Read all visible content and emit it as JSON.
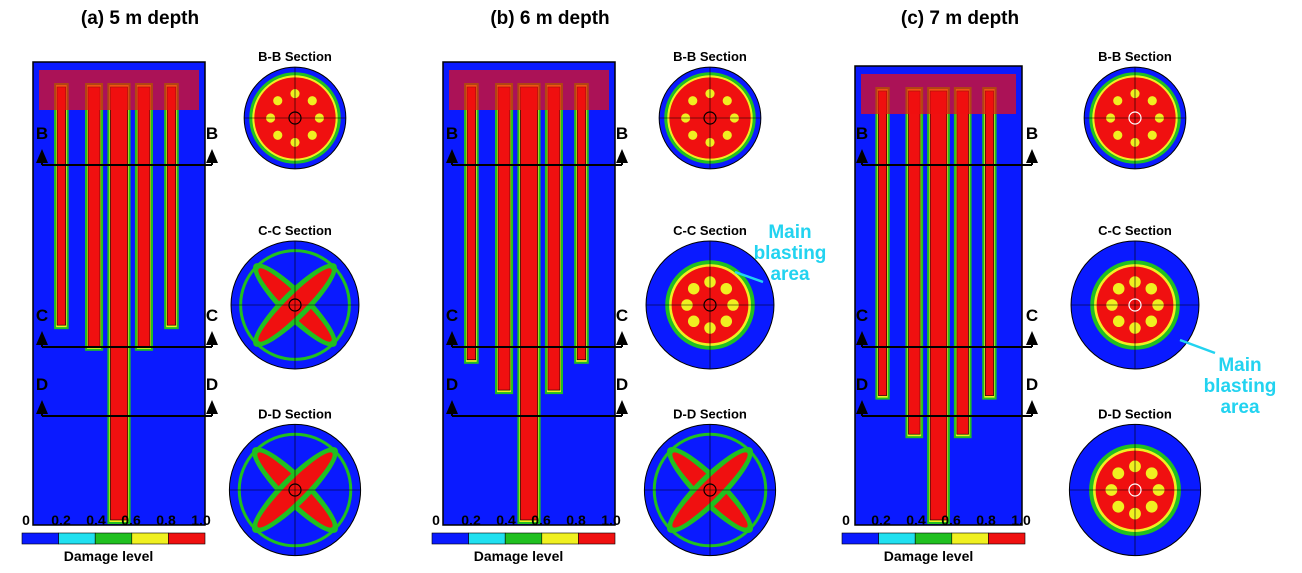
{
  "panels": [
    {
      "title": "(a) 5 m depth",
      "sections": [
        "B-B Section",
        "C-C Section",
        "D-D Section"
      ],
      "cut_labels": [
        "B",
        "C",
        "D"
      ],
      "colorbar": {
        "ticks": [
          "0",
          "0.2",
          "0.4",
          "0.6",
          "0.8",
          "1.0"
        ],
        "label": "Damage level"
      }
    },
    {
      "title": "(b) 6 m depth",
      "sections": [
        "B-B Section",
        "C-C Section",
        "D-D Section"
      ],
      "cut_labels": [
        "B",
        "C",
        "D"
      ],
      "colorbar": {
        "ticks": [
          "0",
          "0.2",
          "0.4",
          "0.6",
          "0.8",
          "1.0"
        ],
        "label": "Damage level"
      },
      "annotation": "Main blasting area"
    },
    {
      "title": "(c) 7 m depth",
      "sections": [
        "B-B Section",
        "C-C Section",
        "D-D Section"
      ],
      "cut_labels": [
        "B",
        "C",
        "D"
      ],
      "colorbar": {
        "ticks": [
          "0",
          "0.2",
          "0.4",
          "0.6",
          "0.8",
          "1.0"
        ],
        "label": "Damage level"
      },
      "annotation": "Main blasting area"
    }
  ]
}
